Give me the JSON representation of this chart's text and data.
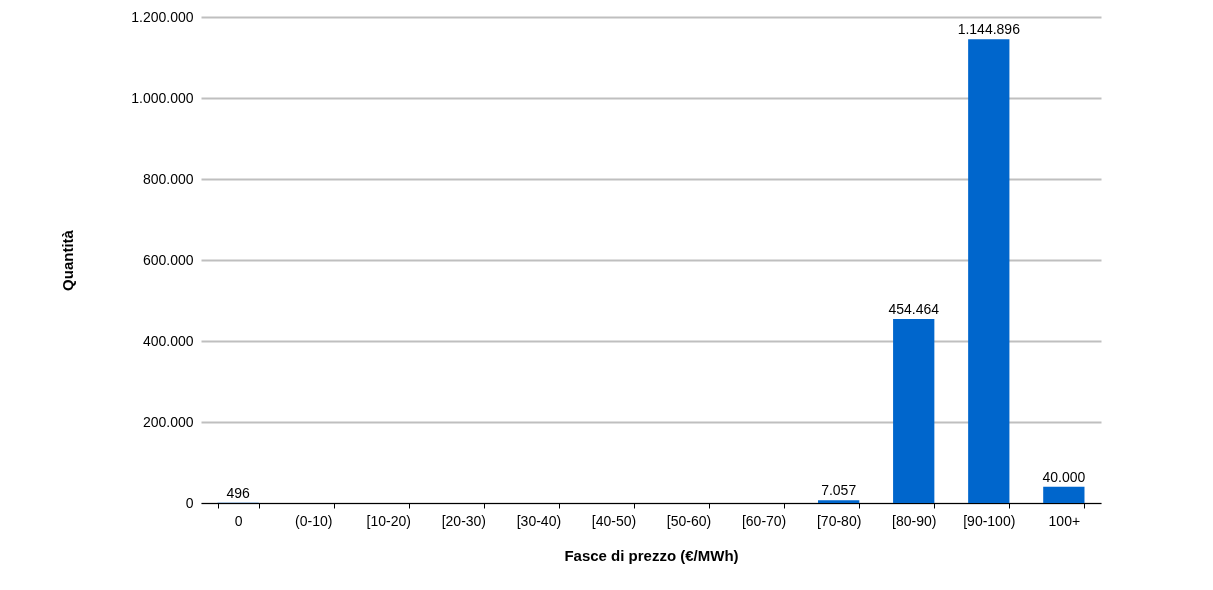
{
  "chart_data": {
    "type": "bar",
    "xlabel": "Fasce di prezzo (€/MWh)",
    "ylabel": "Quantità",
    "categories": [
      "0",
      "(0-10)",
      "[10-20)",
      "[20-30)",
      "[30-40)",
      "[40-50)",
      "[50-60)",
      "[60-70)",
      "[70-80)",
      "[80-90)",
      "[90-100)",
      "100+"
    ],
    "values": [
      496,
      0,
      0,
      0,
      0,
      0,
      0,
      0,
      7057,
      454464,
      1144896,
      40000
    ],
    "value_labels": [
      "496",
      null,
      null,
      null,
      null,
      null,
      null,
      null,
      "7.057",
      "454.464",
      "1.144.896",
      "40.000"
    ],
    "color": "#0066cc",
    "ylim": [
      0,
      1200000
    ],
    "yticks": [
      0,
      {
        "value": 200000,
        "label": "200.000"
      },
      {
        "value": 400000,
        "label": "400.000"
      },
      {
        "value": 600000,
        "label": "600.000"
      },
      {
        "value": 800000,
        "label": "800.000"
      },
      {
        "value": 1000000,
        "label": "1.000.000"
      },
      {
        "value": 1200000,
        "label": "1.200.000"
      }
    ],
    "grid": "y"
  }
}
